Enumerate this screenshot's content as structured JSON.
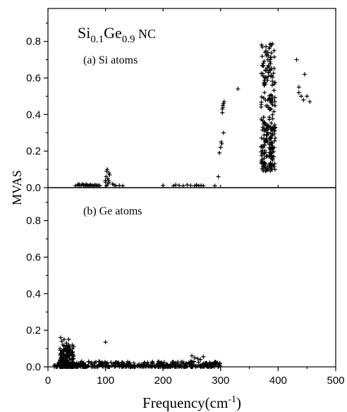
{
  "chart_data": [
    {
      "type": "scatter",
      "title_main": "Si",
      "title_sub1": "0.1",
      "title_mid": "Ge",
      "title_sub2": "0.9",
      "title_tail": " NC",
      "panel_label": "(a) Si atoms",
      "xlim": [
        0,
        500
      ],
      "ylim": [
        0,
        0.98
      ],
      "yticks": [
        "0.0",
        "0.2",
        "0.4",
        "0.6",
        "0.8"
      ],
      "marker": "+",
      "series": [
        {
          "x": [
            48,
            52,
            55,
            58,
            60,
            62,
            64,
            66,
            68,
            70,
            72,
            74,
            76,
            78,
            80,
            82,
            84,
            86,
            88,
            90,
            54,
            66,
            74,
            100,
            101,
            102,
            103,
            104,
            105,
            106,
            107,
            100,
            104,
            106,
            102,
            112,
            115,
            118,
            124,
            130,
            200,
            218,
            222,
            228,
            235,
            242,
            248,
            255,
            258,
            262,
            266,
            270,
            290,
            296,
            298,
            300,
            301,
            302,
            303,
            304,
            305,
            306,
            304,
            303,
            305,
            330,
            432,
            436,
            440,
            444,
            450,
            455,
            436,
            446
          ],
          "y": [
            0.01,
            0.015,
            0.012,
            0.01,
            0.02,
            0.015,
            0.01,
            0.012,
            0.015,
            0.01,
            0.012,
            0.015,
            0.01,
            0.012,
            0.01,
            0.015,
            0.012,
            0.01,
            0.012,
            0.01,
            0.02,
            0.018,
            0.016,
            0.03,
            0.06,
            0.09,
            0.1,
            0.05,
            0.04,
            0.08,
            0.07,
            0.04,
            0.02,
            0.03,
            0.01,
            0.02,
            0.015,
            0.01,
            0.012,
            0.01,
            0.012,
            0.01,
            0.015,
            0.012,
            0.01,
            0.015,
            0.012,
            0.01,
            0.015,
            0.01,
            0.012,
            0.01,
            0.01,
            0.06,
            0.19,
            0.22,
            0.25,
            0.24,
            0.43,
            0.45,
            0.46,
            0.47,
            0.44,
            0.41,
            0.3,
            0.54,
            0.7,
            0.52,
            0.5,
            0.48,
            0.5,
            0.47,
            0.55,
            0.62
          ]
        }
      ],
      "dense_cluster": {
        "x": [
          370,
          395
        ],
        "y": [
          0.09,
          0.79
        ],
        "count": 240
      }
    },
    {
      "type": "scatter",
      "panel_label": "(b) Ge atoms",
      "xlim": [
        0,
        500
      ],
      "ylim": [
        0,
        0.98
      ],
      "yticks": [
        "0.0",
        "0.2",
        "0.4",
        "0.6",
        "0.8"
      ],
      "xticks": [
        "0",
        "100",
        "200",
        "300",
        "400",
        "500"
      ],
      "xlabel_main": "Frequency(cm",
      "xlabel_sup": "-1",
      "xlabel_tail": ")",
      "ylabel": "MVAS",
      "marker": "+",
      "series": [
        {
          "x": [
            100,
            22,
            24,
            26,
            28,
            30,
            32,
            34,
            36,
            38,
            40,
            42,
            36,
            30,
            24,
            250,
            255,
            260,
            265,
            270
          ],
          "y": [
            0.135,
            0.16,
            0.14,
            0.12,
            0.15,
            0.1,
            0.13,
            0.08,
            0.15,
            0.11,
            0.09,
            0.07,
            0.12,
            0.06,
            0.05,
            0.06,
            0.05,
            0.045,
            0.04,
            0.055
          ]
        }
      ],
      "dense_band": {
        "x": [
          10,
          300
        ],
        "y": [
          0.0,
          0.03
        ],
        "count": 420
      },
      "dense_cluster": {
        "x": [
          20,
          45
        ],
        "y": [
          0.0,
          0.12
        ],
        "count": 180
      }
    }
  ]
}
